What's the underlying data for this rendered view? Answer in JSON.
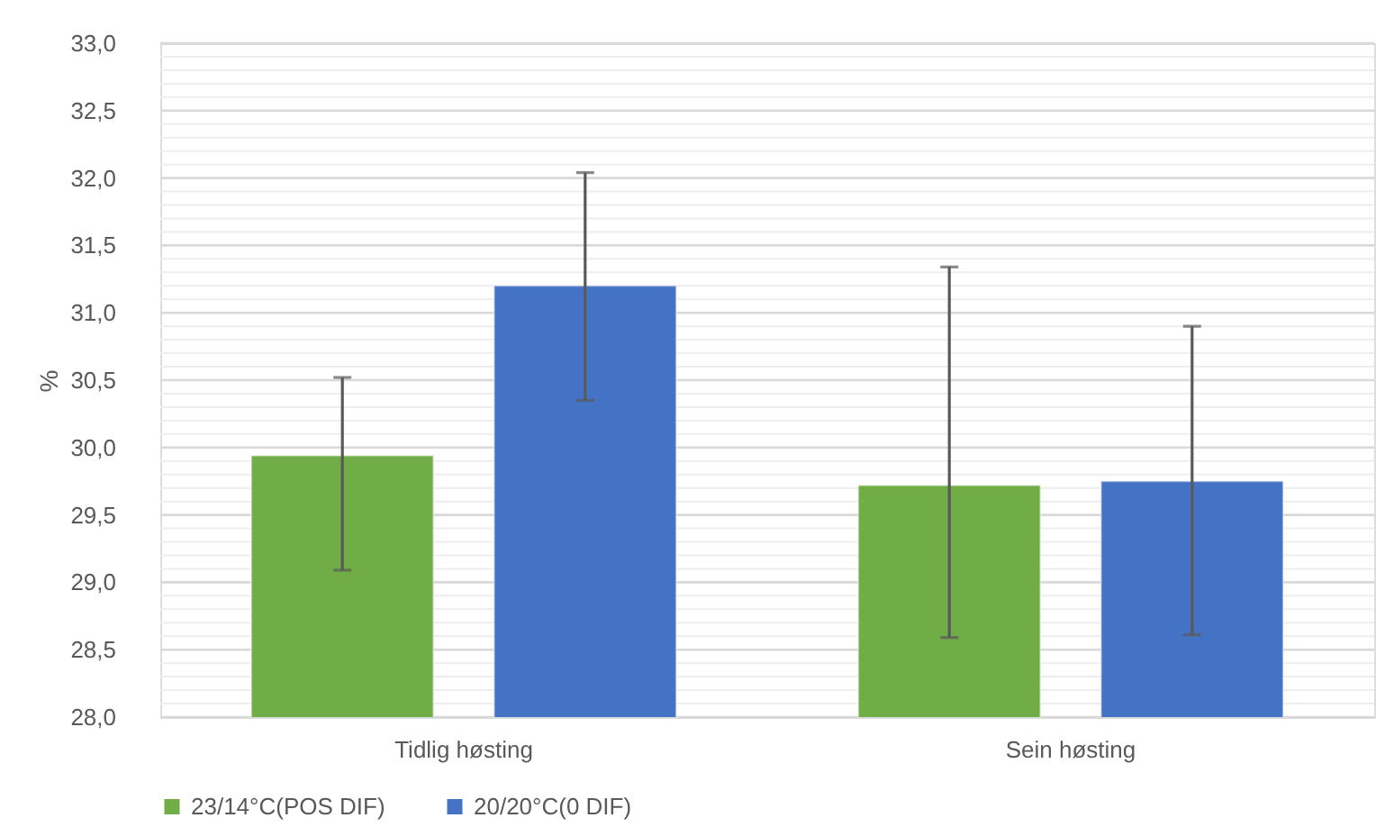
{
  "chart_data": {
    "type": "bar",
    "ylabel": "%",
    "categories": [
      "Tidlig høsting",
      "Sein høsting"
    ],
    "series": [
      {
        "name": "23/14°C(POS DIF)",
        "color": "#70ad47",
        "values": [
          29.94,
          29.72
        ],
        "errors": [
          [
            29.09,
            30.52
          ],
          [
            28.59,
            31.34
          ]
        ]
      },
      {
        "name": "20/20°C(0 DIF)",
        "color": "#4472c4",
        "values": [
          31.2,
          29.75
        ],
        "errors": [
          [
            30.35,
            32.04
          ],
          [
            28.61,
            30.9
          ]
        ]
      }
    ],
    "ylim": [
      28,
      33
    ],
    "yticks": [
      {
        "value": 28,
        "label": "28,0"
      },
      {
        "value": 28.1,
        "label": null
      },
      {
        "value": 28.2,
        "label": null
      },
      {
        "value": 28.3,
        "label": null
      },
      {
        "value": 28.4,
        "label": null
      },
      {
        "value": 28.5,
        "label": "28,5"
      },
      {
        "value": 28.6,
        "label": null
      },
      {
        "value": 28.7,
        "label": null
      },
      {
        "value": 28.8,
        "label": null
      },
      {
        "value": 28.9,
        "label": null
      },
      {
        "value": 29,
        "label": "29,0"
      },
      {
        "value": 29.1,
        "label": null
      },
      {
        "value": 29.2,
        "label": null
      },
      {
        "value": 29.3,
        "label": null
      },
      {
        "value": 29.4,
        "label": null
      },
      {
        "value": 29.5,
        "label": "29,5"
      },
      {
        "value": 29.6,
        "label": null
      },
      {
        "value": 29.7,
        "label": null
      },
      {
        "value": 29.8,
        "label": null
      },
      {
        "value": 29.9,
        "label": null
      },
      {
        "value": 30,
        "label": "30,0"
      },
      {
        "value": 30.1,
        "label": null
      },
      {
        "value": 30.2,
        "label": null
      },
      {
        "value": 30.3,
        "label": null
      },
      {
        "value": 30.4,
        "label": null
      },
      {
        "value": 30.5,
        "label": "30,5"
      },
      {
        "value": 30.6,
        "label": null
      },
      {
        "value": 30.7,
        "label": null
      },
      {
        "value": 30.8,
        "label": null
      },
      {
        "value": 30.9,
        "label": null
      },
      {
        "value": 31,
        "label": "31,0"
      },
      {
        "value": 31.1,
        "label": null
      },
      {
        "value": 31.2,
        "label": null
      },
      {
        "value": 31.3,
        "label": null
      },
      {
        "value": 31.4,
        "label": null
      },
      {
        "value": 31.5,
        "label": "31,5"
      },
      {
        "value": 31.6,
        "label": null
      },
      {
        "value": 31.7,
        "label": null
      },
      {
        "value": 31.8,
        "label": null
      },
      {
        "value": 31.9,
        "label": null
      },
      {
        "value": 32,
        "label": "32,0"
      },
      {
        "value": 32.1,
        "label": null
      },
      {
        "value": 32.2,
        "label": null
      },
      {
        "value": 32.3,
        "label": null
      },
      {
        "value": 32.4,
        "label": null
      },
      {
        "value": 32.5,
        "label": "32,5"
      },
      {
        "value": 32.6,
        "label": null
      },
      {
        "value": 32.7,
        "label": null
      },
      {
        "value": 32.8,
        "label": null
      },
      {
        "value": 32.9,
        "label": null
      },
      {
        "value": 33,
        "label": "33,0"
      }
    ],
    "grid": "y",
    "legend": "bottom"
  }
}
